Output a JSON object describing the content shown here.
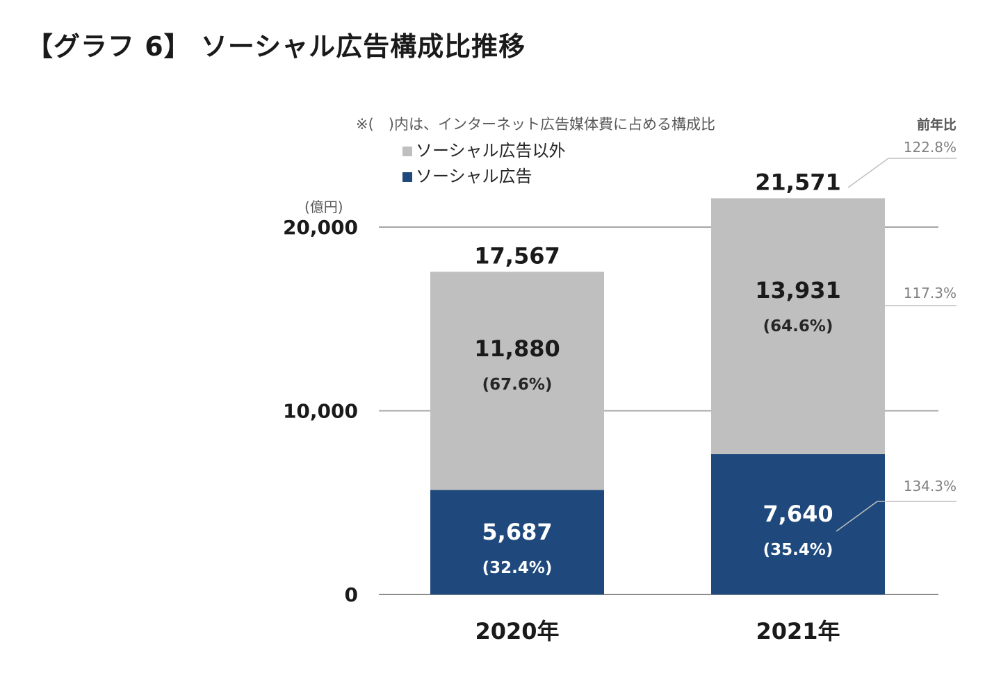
{
  "title": "【グラフ 6】 ソーシャル広告構成比推移",
  "chart_data": {
    "type": "bar",
    "stacked": true,
    "note": "※(　)内は、インターネット広告媒体費に占める構成比",
    "unit_label": "(億円)",
    "yoy_header": "前年比",
    "categories": [
      "2020年",
      "2021年"
    ],
    "yticks": [
      "0",
      "10,000",
      "20,000"
    ],
    "ylim": [
      0,
      20000
    ],
    "grid": true,
    "legend_position": "top-left",
    "series": [
      {
        "name": "ソーシャル広告",
        "color": "#1F497D",
        "values": [
          5687,
          7640
        ],
        "value_labels": [
          "5,687",
          "7,640"
        ],
        "share_labels": [
          "(32.4%)",
          "(35.4%)"
        ],
        "yoy": "134.3%"
      },
      {
        "name": "ソーシャル広告以外",
        "color": "#BFBFBF",
        "values": [
          11880,
          13931
        ],
        "value_labels": [
          "11,880",
          "13,931"
        ],
        "share_labels": [
          "(67.6%)",
          "(64.6%)"
        ],
        "yoy": "117.3%"
      }
    ],
    "totals": [
      17567,
      21571
    ],
    "total_labels": [
      "17,567",
      "21,571"
    ],
    "total_yoy": "122.8%"
  }
}
